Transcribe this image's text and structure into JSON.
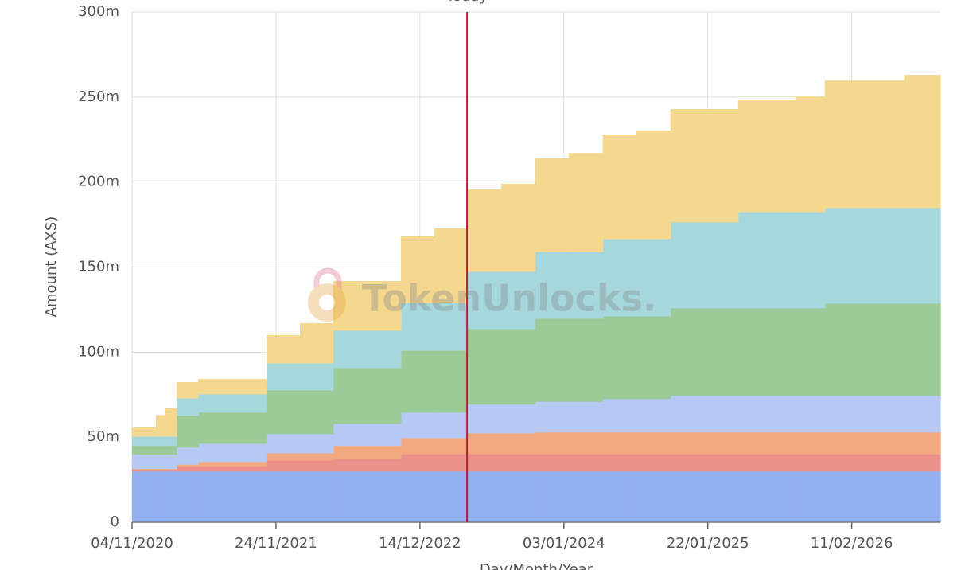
{
  "chart_data": {
    "type": "stacked-step-area",
    "x_label": "Day/Month/Year",
    "y_label": "Amount (AXS)",
    "annotation": {
      "label": "Today",
      "x": "19/04/2023",
      "color": "#b0243a"
    },
    "x": [
      "04/11/2020",
      "07/01/2021",
      "01/02/2021",
      "03/03/2021",
      "30/04/2021",
      "30/10/2021",
      "27/01/2022",
      "26/04/2022",
      "24/10/2022",
      "21/01/2023",
      "19/04/2023",
      "19/07/2023",
      "18/10/2023",
      "16/01/2024",
      "16/04/2024",
      "15/07/2024",
      "14/10/2024",
      "13/04/2025",
      "13/09/2025",
      "01/12/2025",
      "01/07/2026"
    ],
    "series": [
      {
        "color": "#94b1f2",
        "values": [
          30,
          30,
          30,
          30,
          30,
          30,
          30,
          30,
          30,
          30,
          30,
          30,
          30,
          30,
          30,
          30,
          30,
          30,
          30,
          30,
          30
        ]
      },
      {
        "color": "#ea928a",
        "values": [
          1,
          1,
          1,
          2.8,
          3,
          6.5,
          6.5,
          7.4,
          10.2,
          10.2,
          10.2,
          10.2,
          10.2,
          10.2,
          10.2,
          10.2,
          10.2,
          10.2,
          10.2,
          10.2,
          10.2
        ]
      },
      {
        "color": "#f2a97f",
        "values": [
          0.5,
          0.5,
          0.5,
          1.2,
          2.6,
          4.2,
          4.2,
          7.6,
          9.4,
          9.4,
          12.2,
          12.2,
          12.7,
          12.7,
          12.7,
          12.7,
          12.7,
          12.7,
          12.7,
          12.7,
          12.7
        ]
      },
      {
        "color": "#b6c9f5",
        "values": [
          8.5,
          8.5,
          8.5,
          10,
          10.7,
          11.3,
          11.3,
          13,
          15,
          15,
          16.9,
          16.9,
          18.1,
          18.1,
          19.6,
          19.6,
          21.5,
          21.5,
          21.5,
          21.5,
          21.5
        ]
      },
      {
        "color": "#9ccb98",
        "values": [
          5,
          5,
          5,
          18.7,
          18.3,
          25.7,
          25.7,
          32.8,
          36.4,
          36.4,
          44.4,
          44.4,
          48.8,
          48.8,
          48.7,
          48.7,
          51.5,
          51.5,
          51.5,
          54.3,
          54.3
        ]
      },
      {
        "color": "#a5d7dc",
        "values": [
          5.5,
          5.5,
          5.5,
          10.3,
          10.7,
          15.9,
          15.9,
          22,
          28,
          28,
          33.7,
          33.7,
          39.2,
          39.2,
          45.4,
          45.4,
          50.5,
          56.6,
          56.6,
          56.1,
          56.1
        ]
      },
      {
        "color": "#f4d88f",
        "values": [
          5.2,
          12.5,
          16.5,
          9.4,
          8.9,
          16.4,
          23.4,
          29,
          39,
          43.7,
          48.2,
          51.5,
          54.9,
          58.1,
          61.3,
          63.6,
          66.5,
          66,
          67.8,
          74.9,
          78.2
        ]
      }
    ],
    "xlim": [
      "04/11/2020",
      "06/10/2026"
    ],
    "xticks": [
      "04/11/2020",
      "24/11/2021",
      "14/12/2022",
      "03/01/2024",
      "22/01/2025",
      "11/02/2026"
    ],
    "ylim": [
      0,
      300
    ],
    "yticks": [
      0,
      {
        "value": 50,
        "label": "50m"
      },
      {
        "value": 100,
        "label": "100m"
      },
      {
        "value": 150,
        "label": "150m"
      },
      {
        "value": 200,
        "label": "200m"
      },
      {
        "value": 250,
        "label": "250m"
      },
      {
        "value": 300,
        "label": "300m"
      }
    ],
    "grid": true
  },
  "watermark": "TokenUnlocks."
}
